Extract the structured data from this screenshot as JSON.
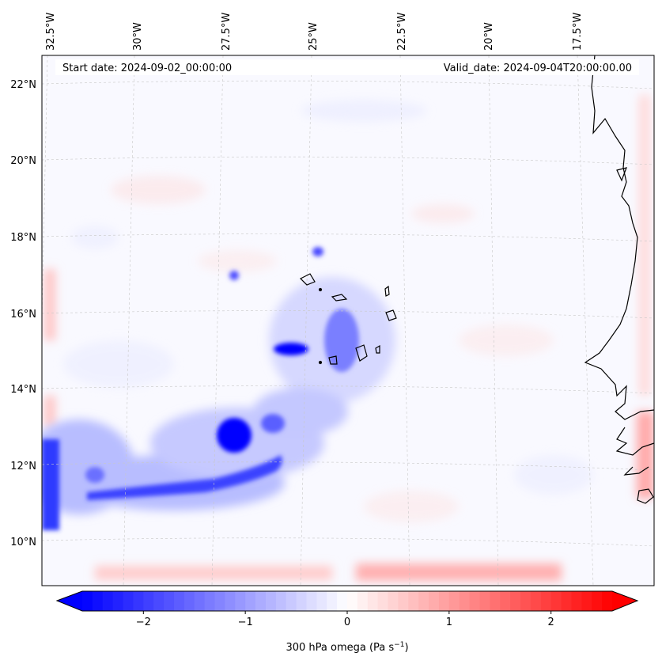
{
  "map": {
    "start_date_text": "Start date: 2024-09-02_00:00:00",
    "valid_date_text": "Valid_date: 2024-09-04T20:00:00.00",
    "lon_labels": [
      "32.5°W",
      "30°W",
      "27.5°W",
      "25°W",
      "22.5°W",
      "20°W",
      "17.5°W"
    ],
    "lat_labels": [
      "22°N",
      "20°N",
      "18°N",
      "16°N",
      "14°N",
      "12°N",
      "10°N"
    ],
    "gridlines": true,
    "colors": {
      "negative": "#0000ff",
      "positive": "#ff0000",
      "neutral": "#ffffff",
      "coast": "#000000"
    }
  },
  "colorbar": {
    "label_main": "300 hPa omega (Pa s",
    "label_exp": "−1",
    "label_close": ")",
    "ticks": [
      "−2",
      "−1",
      "0",
      "1",
      "2"
    ],
    "tick_values": [
      -2,
      -1,
      0,
      1,
      2
    ],
    "range": [
      -2.6,
      2.6
    ],
    "extend": "both"
  }
}
